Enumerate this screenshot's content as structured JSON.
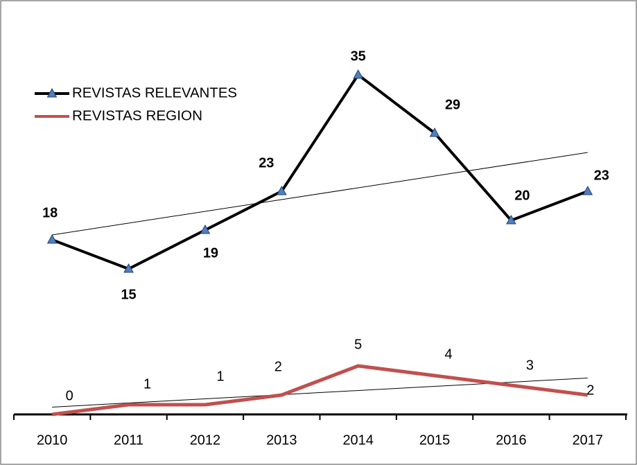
{
  "chart_data": {
    "type": "line",
    "categories": [
      "2010",
      "2011",
      "2012",
      "2013",
      "2014",
      "2015",
      "2016",
      "2017"
    ],
    "series": [
      {
        "name": "REVISTAS RELEVANTES",
        "color": "#000000",
        "marker_color": "#4f7fbf",
        "values": [
          18,
          15,
          19,
          23,
          35,
          29,
          20,
          23
        ]
      },
      {
        "name": "REVISTAS REGION",
        "color": "#c0504d",
        "values": [
          0,
          1,
          1,
          2,
          5,
          4,
          3,
          2
        ]
      }
    ],
    "ylim": [
      0,
      40
    ],
    "trendline": true
  }
}
